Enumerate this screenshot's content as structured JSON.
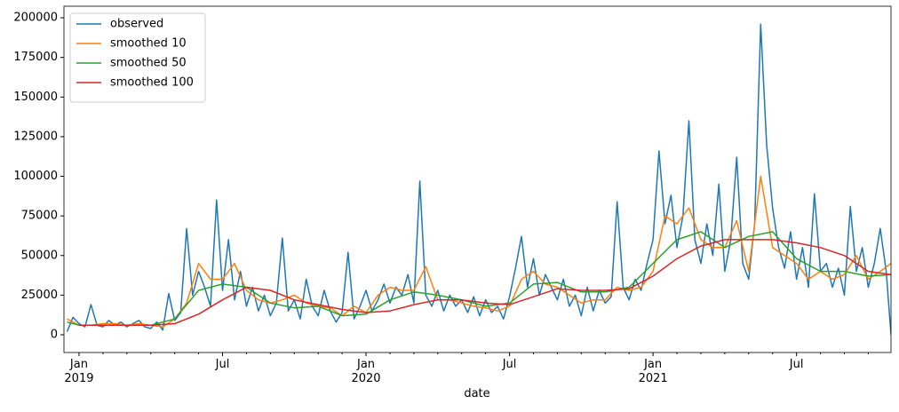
{
  "chart_data": {
    "type": "line",
    "x_label": "date",
    "xlim": [
      -0.63,
      33.95
    ],
    "ylim": [
      -11200,
      207300
    ],
    "yticks": [
      0,
      25000,
      50000,
      75000,
      100000,
      125000,
      150000,
      175000,
      200000
    ],
    "xticks": [
      {
        "value": 0,
        "label": "Jan\n2019"
      },
      {
        "value": 6,
        "label": "Jul"
      },
      {
        "value": 12,
        "label": "Jan\n2020"
      },
      {
        "value": 18,
        "label": "Jul"
      },
      {
        "value": 24,
        "label": "Jan\n2021"
      },
      {
        "value": 30,
        "label": "Jul"
      }
    ],
    "xminorticks": [
      1,
      2,
      3,
      4,
      5,
      7,
      8,
      9,
      10,
      11,
      13,
      14,
      15,
      16,
      17,
      19,
      20,
      21,
      22,
      23,
      25,
      26,
      27,
      28,
      29,
      31,
      32,
      33
    ],
    "legend": "upper left",
    "grid": false,
    "series": [
      {
        "name": "observed",
        "color": "#1f77b4",
        "x": [
          -0.5,
          -0.25,
          0,
          0.25,
          0.5,
          0.75,
          1,
          1.25,
          1.5,
          1.75,
          2,
          2.25,
          2.5,
          2.75,
          3,
          3.25,
          3.5,
          3.75,
          4,
          4.25,
          4.5,
          4.75,
          5,
          5.25,
          5.5,
          5.75,
          6,
          6.25,
          6.5,
          6.75,
          7,
          7.25,
          7.5,
          7.75,
          8,
          8.25,
          8.5,
          8.75,
          9,
          9.25,
          9.5,
          9.75,
          10,
          10.25,
          10.5,
          10.75,
          11,
          11.25,
          11.5,
          11.75,
          12,
          12.25,
          12.5,
          12.75,
          13,
          13.25,
          13.5,
          13.75,
          14,
          14.25,
          14.5,
          14.75,
          15,
          15.25,
          15.5,
          15.75,
          16,
          16.25,
          16.5,
          16.75,
          17,
          17.25,
          17.5,
          17.75,
          18,
          18.25,
          18.5,
          18.75,
          19,
          19.25,
          19.5,
          19.75,
          20,
          20.25,
          20.5,
          20.75,
          21,
          21.25,
          21.5,
          21.75,
          22,
          22.25,
          22.5,
          22.75,
          23,
          23.25,
          23.5,
          23.75,
          24,
          24.25,
          24.5,
          24.75,
          25,
          25.25,
          25.5,
          25.75,
          26,
          26.25,
          26.5,
          26.75,
          27,
          27.25,
          27.5,
          27.75,
          28,
          28.25,
          28.5,
          28.75,
          29,
          29.25,
          29.5,
          29.75,
          30,
          30.25,
          30.5,
          30.75,
          31,
          31.25,
          31.5,
          31.75,
          32,
          32.25,
          32.5,
          32.75,
          33,
          33.25,
          33.5,
          33.75,
          33.95
        ],
        "values": [
          2000,
          11000,
          7000,
          5000,
          19000,
          6000,
          5000,
          9000,
          6000,
          8000,
          5000,
          7000,
          9000,
          5000,
          4000,
          8000,
          3000,
          26000,
          9000,
          14000,
          67000,
          25000,
          40000,
          30000,
          18000,
          85000,
          28000,
          60000,
          22000,
          40000,
          18000,
          30000,
          15000,
          25000,
          12000,
          20000,
          61000,
          15000,
          22000,
          10000,
          35000,
          18000,
          12000,
          28000,
          15000,
          8000,
          14000,
          52000,
          10000,
          18000,
          28000,
          15000,
          22000,
          32000,
          20000,
          30000,
          25000,
          38000,
          20000,
          97000,
          25000,
          18000,
          28000,
          15000,
          25000,
          18000,
          22000,
          14000,
          24000,
          12000,
          22000,
          14000,
          18000,
          10000,
          24000,
          42000,
          62000,
          30000,
          48000,
          25000,
          38000,
          30000,
          22000,
          35000,
          18000,
          25000,
          12000,
          30000,
          15000,
          28000,
          20000,
          24000,
          84000,
          30000,
          22000,
          35000,
          28000,
          45000,
          60000,
          116000,
          70000,
          88000,
          55000,
          75000,
          135000,
          60000,
          45000,
          70000,
          50000,
          95000,
          40000,
          60000,
          112000,
          45000,
          35000,
          70000,
          196000,
          120000,
          80000,
          55000,
          42000,
          65000,
          35000,
          55000,
          30000,
          89000,
          40000,
          45000,
          30000,
          42000,
          25000,
          81000,
          40000,
          55000,
          30000,
          45000,
          67000,
          40000,
          0
        ]
      },
      {
        "name": "smoothed 10",
        "color": "#ff7f0e",
        "x": [
          -0.5,
          0,
          0.5,
          1,
          1.5,
          2,
          2.5,
          3,
          3.5,
          4,
          4.5,
          5,
          5.5,
          6,
          6.5,
          7,
          7.5,
          8,
          8.5,
          9,
          9.5,
          10,
          10.5,
          11,
          11.5,
          12,
          12.5,
          13,
          13.5,
          14,
          14.5,
          15,
          15.5,
          16,
          16.5,
          17,
          17.5,
          18,
          18.5,
          19,
          19.5,
          20,
          20.5,
          21,
          21.5,
          22,
          22.5,
          23,
          23.5,
          24,
          24.5,
          25,
          25.5,
          26,
          26.5,
          27,
          27.5,
          28,
          28.5,
          29,
          29.5,
          30,
          30.5,
          31,
          31.5,
          32,
          32.5,
          33,
          33.5,
          33.95
        ],
        "values": [
          10000,
          6000,
          6000,
          7000,
          7000,
          6000,
          7000,
          6000,
          5000,
          10000,
          20000,
          45000,
          35000,
          35000,
          45000,
          28000,
          22000,
          20000,
          22000,
          25000,
          20000,
          18000,
          17000,
          12000,
          18000,
          14000,
          25000,
          30000,
          28000,
          28000,
          43000,
          22000,
          22000,
          20000,
          18000,
          17000,
          15000,
          18000,
          35000,
          40000,
          32000,
          30000,
          25000,
          20000,
          22000,
          22000,
          30000,
          28000,
          30000,
          40000,
          75000,
          70000,
          80000,
          60000,
          55000,
          55000,
          72000,
          40000,
          100000,
          55000,
          50000,
          45000,
          35000,
          40000,
          35000,
          38000,
          50000,
          35000,
          40000,
          45000
        ]
      },
      {
        "name": "smoothed 50",
        "color": "#2ca02c",
        "x": [
          -0.5,
          0,
          1,
          2,
          3,
          4,
          5,
          6,
          7,
          8,
          9,
          10,
          11,
          12,
          13,
          14,
          15,
          16,
          17,
          18,
          19,
          20,
          21,
          22,
          23,
          24,
          25,
          26,
          27,
          28,
          29,
          30,
          31,
          32,
          33,
          33.95
        ],
        "values": [
          8000,
          6000,
          6000,
          6000,
          6000,
          10000,
          28000,
          32000,
          30000,
          20000,
          17000,
          18000,
          12000,
          13000,
          22000,
          27000,
          25000,
          22000,
          18000,
          20000,
          32000,
          33000,
          27000,
          27000,
          30000,
          45000,
          60000,
          65000,
          55000,
          62000,
          65000,
          48000,
          40000,
          40000,
          37000,
          38000
        ]
      },
      {
        "name": "smoothed 100",
        "color": "#d62728",
        "x": [
          0,
          1,
          2,
          3,
          4,
          5,
          6,
          7,
          8,
          9,
          10,
          11,
          12,
          13,
          14,
          15,
          16,
          17,
          18,
          19,
          20,
          21,
          22,
          23,
          24,
          25,
          26,
          27,
          28,
          29,
          30,
          31,
          32,
          33,
          33.95
        ],
        "values": [
          6000,
          6000,
          6000,
          6000,
          7000,
          13000,
          22000,
          30000,
          28000,
          22000,
          19000,
          16000,
          14000,
          15000,
          19000,
          22000,
          22000,
          20000,
          19000,
          24000,
          29000,
          28000,
          28000,
          29000,
          37000,
          48000,
          56000,
          60000,
          60000,
          60000,
          58000,
          55000,
          50000,
          40000,
          38000
        ]
      }
    ]
  }
}
